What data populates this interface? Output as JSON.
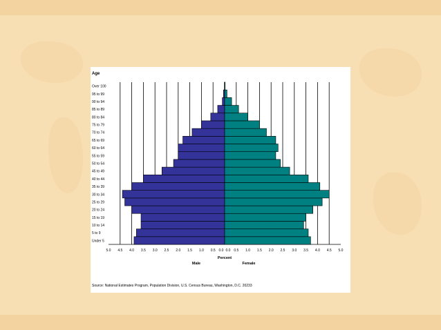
{
  "chart_data": {
    "type": "bar",
    "orientation": "horizontal",
    "layout": "population-pyramid",
    "ylabel": "Age",
    "xlabel": "Percent",
    "categories": [
      "Under 5",
      "5 to 9",
      "10 to 14",
      "15 to 19",
      "20 to 24",
      "25 to 29",
      "30 to 34",
      "35 to 39",
      "40 to 44",
      "45 to 49",
      "50 to 54",
      "55 to 59",
      "60 to 64",
      "65 to 69",
      "70 to 74",
      "75 to 79",
      "80 to 84",
      "85 to 89",
      "90 to 94",
      "95 to 99",
      "Over 100"
    ],
    "series": [
      {
        "name": "Male",
        "color": "#33339a",
        "values": [
          3.9,
          3.8,
          3.6,
          3.6,
          4.0,
          4.3,
          4.4,
          4.0,
          3.5,
          2.7,
          2.2,
          2.0,
          2.0,
          1.8,
          1.4,
          1.0,
          0.6,
          0.3,
          0.1,
          0.05,
          0.01
        ]
      },
      {
        "name": "Female",
        "color": "#008080",
        "values": [
          3.7,
          3.6,
          3.4,
          3.5,
          3.8,
          4.2,
          4.5,
          4.1,
          3.6,
          2.8,
          2.4,
          2.2,
          2.3,
          2.2,
          1.8,
          1.5,
          1.0,
          0.6,
          0.3,
          0.1,
          0.02
        ]
      }
    ],
    "xticks": [
      "5.0",
      "4.5",
      "4.0",
      "3.5",
      "3.0",
      "2.5",
      "2.0",
      "1.5",
      "1.0",
      "0.5",
      "0.0",
      "0.0",
      "0.5",
      "1.0",
      "1.5",
      "2.0",
      "2.5",
      "3.0",
      "3.5",
      "4.0",
      "4.5",
      "5.0"
    ],
    "xlim": [
      0,
      5
    ],
    "grid": true,
    "source": "Source:  National Estimates Program, Population Division, U.S. Census Bureau, Washington, D.C. 20233"
  }
}
